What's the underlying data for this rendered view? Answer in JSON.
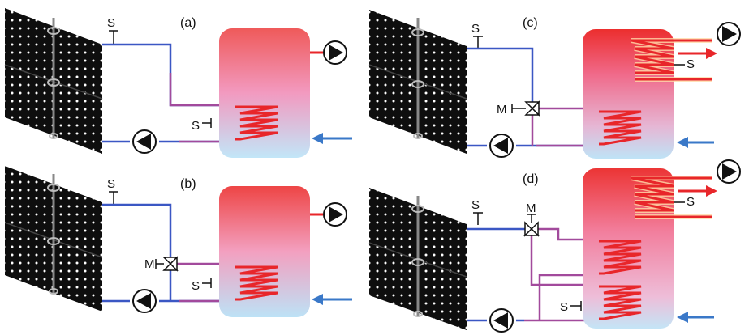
{
  "panels": [
    {
      "id": "a",
      "label": "(a)"
    },
    {
      "id": "b",
      "label": "(b)"
    },
    {
      "id": "c",
      "label": "(c)"
    },
    {
      "id": "d",
      "label": "(d)"
    }
  ],
  "symbols": {
    "sensor": "S",
    "valve": "M"
  },
  "colors": {
    "supply_pipe": "#3b57c4",
    "return_pipe": "#a24a9c",
    "hot": "#e8262a",
    "cold_inlet": "#3a78c8",
    "tank_top": "#ef4b4b",
    "tank_mid": "#f48fb0",
    "tank_bottom": "#bfe3f6",
    "collector": "#101010"
  },
  "icons": [
    "solar-collector-icon",
    "pump-icon",
    "sensor-icon",
    "three-way-valve-icon",
    "heat-exchanger-coil-icon",
    "storage-tank-icon",
    "arrow-icon"
  ]
}
